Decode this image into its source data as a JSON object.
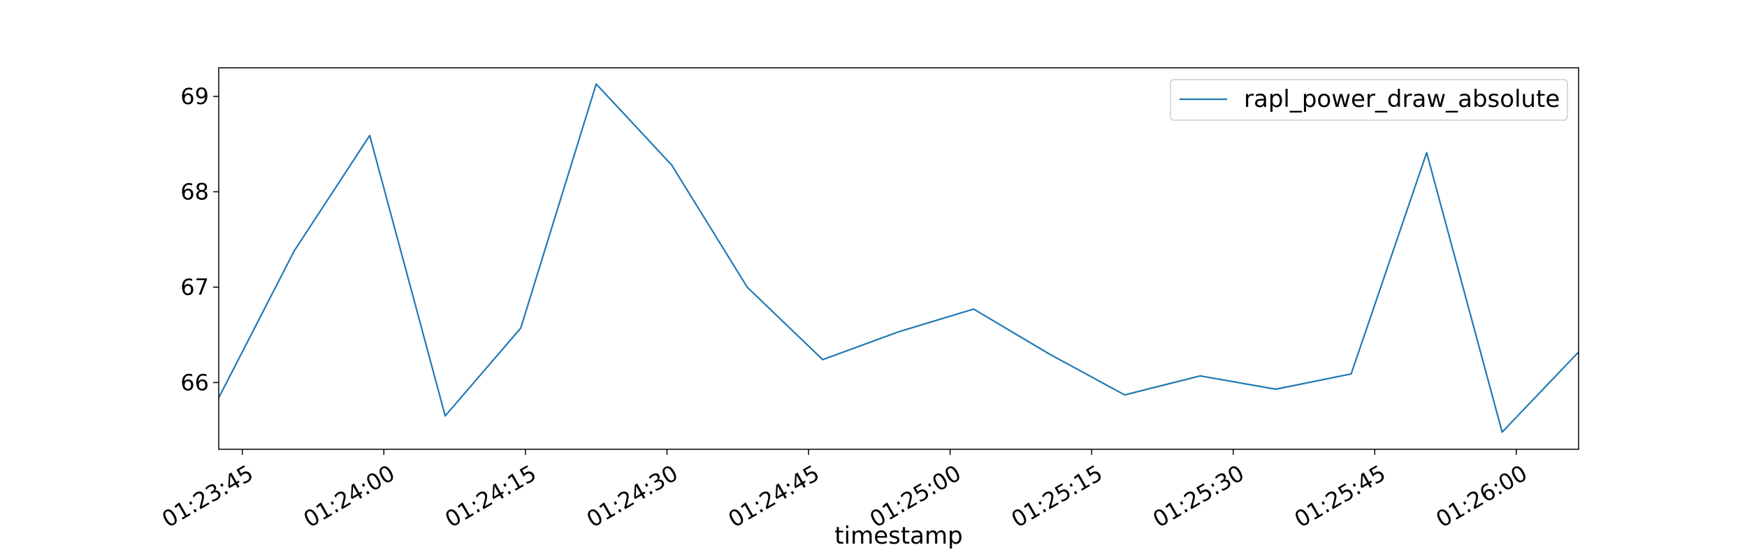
{
  "chart_data": {
    "type": "line",
    "title": "",
    "xlabel": "timestamp",
    "ylabel": "",
    "x_tick_labels": [
      "01:23:45",
      "01:24:00",
      "01:24:15",
      "01:24:30",
      "01:24:45",
      "01:25:00",
      "01:25:15",
      "01:25:30",
      "01:25:45",
      "01:26:00"
    ],
    "y_ticks": [
      66,
      67,
      68,
      69
    ],
    "xlim": [
      "01:23:42.5",
      "01:26:06.6"
    ],
    "ylim": [
      65.3,
      69.3
    ],
    "grid": false,
    "legend_position": "top-right",
    "series": [
      {
        "name": "rapl_power_draw_absolute",
        "color": "#1f77b4",
        "x": [
          "01:23:42.5",
          "01:23:50.5",
          "01:23:58.5",
          "01:24:06.5",
          "01:24:14.5",
          "01:24:22.5",
          "01:24:30.5",
          "01:24:38.5",
          "01:24:46.5",
          "01:24:54.5",
          "01:25:02.5",
          "01:25:10.5",
          "01:25:18.5",
          "01:25:26.5",
          "01:25:34.5",
          "01:25:42.5",
          "01:25:50.5",
          "01:25:58.5",
          "01:26:06.6"
        ],
        "values": [
          65.84,
          67.38,
          68.59,
          65.65,
          66.57,
          69.13,
          68.28,
          67.0,
          66.24,
          66.53,
          66.77,
          66.3,
          65.87,
          66.07,
          65.93,
          66.09,
          68.41,
          65.48,
          66.32
        ]
      }
    ]
  }
}
